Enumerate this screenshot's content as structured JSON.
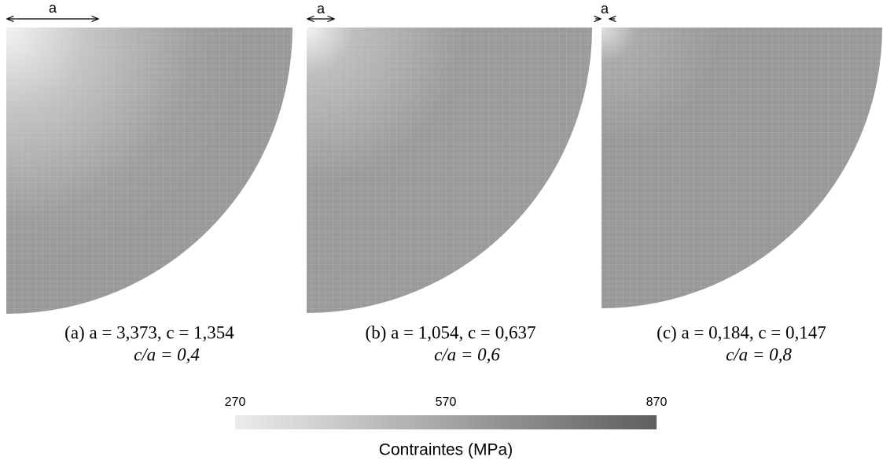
{
  "panels": [
    {
      "dimension_label": "a",
      "caption": [
        "(a) a = 3,373, c = 1,354",
        "c/a = 0,4"
      ]
    },
    {
      "dimension_label": "a",
      "caption": [
        "(b) a = 1,054, c = 0,637",
        "c/a = 0,6"
      ]
    },
    {
      "dimension_label": "a",
      "caption": [
        "(c) a = 0,184, c = 0,147",
        "c/a = 0,8"
      ]
    }
  ],
  "colorbar": {
    "ticks": [
      "270",
      "570",
      "870"
    ],
    "title": "Contraintes (MPa)"
  }
}
